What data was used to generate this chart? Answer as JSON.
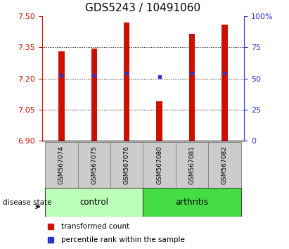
{
  "title": "GDS5243 / 10491060",
  "samples": [
    "GSM567074",
    "GSM567075",
    "GSM567076",
    "GSM567080",
    "GSM567081",
    "GSM567082"
  ],
  "bar_tops": [
    7.33,
    7.345,
    7.47,
    7.09,
    7.415,
    7.46
  ],
  "blue_markers": [
    7.215,
    7.215,
    7.225,
    7.21,
    7.225,
    7.225
  ],
  "bar_bottom": 6.9,
  "ylim": [
    6.9,
    7.5
  ],
  "yticks_left": [
    6.9,
    7.05,
    7.2,
    7.35,
    7.5
  ],
  "yticks_right": [
    0,
    25,
    50,
    75,
    100
  ],
  "yticks_right_vals": [
    6.9,
    7.05,
    7.2,
    7.35,
    7.5
  ],
  "bar_color": "#cc1100",
  "marker_color": "#3333cc",
  "disease_state_control": "control",
  "disease_state_arthritis": "arthritis",
  "disease_state_label": "disease state",
  "control_bg": "#bbffbb",
  "arthritis_bg": "#44dd44",
  "sample_bg": "#cccccc",
  "legend_red_label": "transformed count",
  "legend_blue_label": "percentile rank within the sample",
  "bar_width": 0.18,
  "title_fontsize": 11,
  "grid_yticks": [
    7.05,
    7.2,
    7.35
  ]
}
